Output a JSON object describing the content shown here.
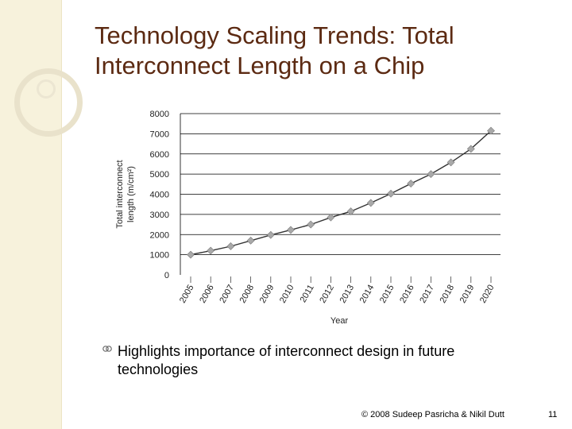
{
  "slide": {
    "title_line1": "Technology Scaling Trends: Total",
    "title_line2": "Interconnect Length on a Chip",
    "bullet": "Highlights importance of interconnect design in future technologies",
    "footer": "© 2008 Sudeep Pasricha & Nikil Dutt",
    "page_number": "11"
  },
  "colors": {
    "title": "#5c2a12",
    "line": "#333333",
    "marker": "#a9a9a9",
    "grid": "#000000"
  },
  "chart_data": {
    "type": "line",
    "title": "",
    "xlabel": "Year",
    "ylabel_line1": "Total interconnect",
    "ylabel_line2": "length (m/cm²)",
    "categories": [
      "2005",
      "2006",
      "2007",
      "2008",
      "2009",
      "2010",
      "2011",
      "2012",
      "2013",
      "2014",
      "2015",
      "2016",
      "2017",
      "2018",
      "2019",
      "2020"
    ],
    "values": [
      1000,
      1200,
      1420,
      1700,
      1980,
      2230,
      2500,
      2850,
      3150,
      3570,
      4030,
      4530,
      5000,
      5580,
      6250,
      7150
    ],
    "ylim": [
      0,
      8000
    ],
    "yticks": [
      0,
      1000,
      2000,
      3000,
      4000,
      5000,
      6000,
      7000,
      8000
    ],
    "grid": true,
    "legend": "none"
  }
}
